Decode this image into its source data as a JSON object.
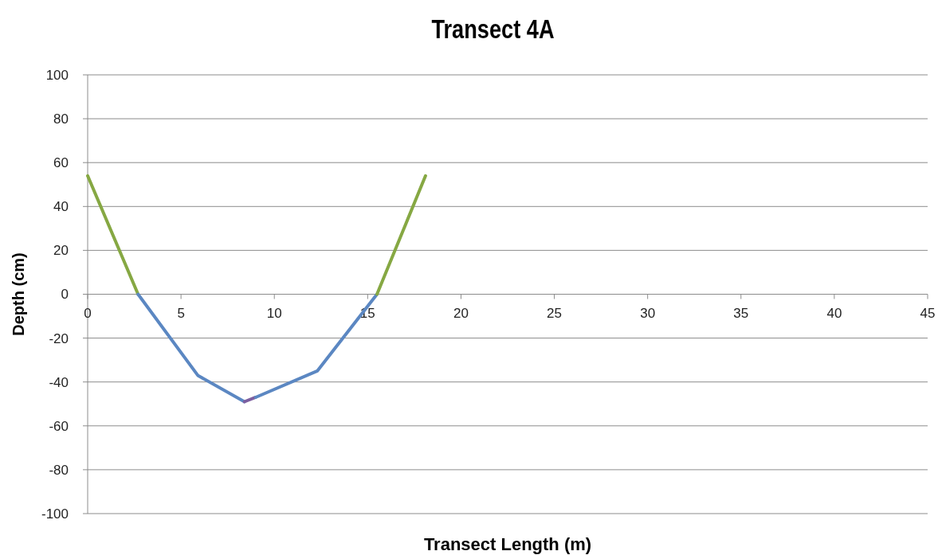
{
  "chart_data": {
    "type": "line",
    "title": "Transect 4A",
    "xlabel": "Transect Length (m)",
    "ylabel": "Depth (cm)",
    "xlim": [
      0,
      45
    ],
    "xticks": [
      0,
      5,
      10,
      15,
      20,
      25,
      30,
      35,
      40,
      45
    ],
    "ylim": [
      -100,
      100
    ],
    "yticks": [
      -100,
      -80,
      -60,
      -40,
      -20,
      0,
      20,
      40,
      60,
      80,
      100
    ],
    "grid": "y",
    "marker": "none",
    "line_style": "solid",
    "series": [
      {
        "color": "#86a843",
        "x": [
          0,
          2.7
        ],
        "values": [
          54,
          0
        ]
      },
      {
        "color": "#5b87c2",
        "x": [
          2.7,
          5.9,
          8.4
        ],
        "values": [
          0,
          -37,
          -49
        ]
      },
      {
        "color": "#7d5fa0",
        "x": [
          8.4,
          9.0
        ],
        "values": [
          -49,
          -47
        ]
      },
      {
        "color": "#5b87c2",
        "x": [
          9.0,
          12.3,
          15.5
        ],
        "values": [
          -47,
          -35,
          0
        ]
      },
      {
        "color": "#86a843",
        "x": [
          15.5,
          18.1
        ],
        "values": [
          0,
          54
        ]
      }
    ]
  }
}
